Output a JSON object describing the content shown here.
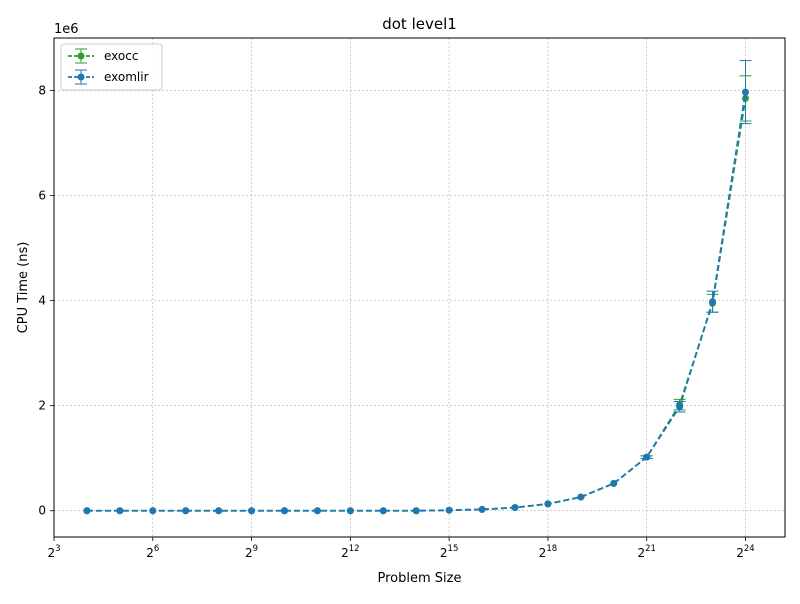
{
  "chart_data": {
    "type": "line",
    "title": "dot level1",
    "xlabel": "Problem Size",
    "ylabel": "CPU Time (ns)",
    "y_offset_label": "1e6",
    "x_scale": "log2",
    "xlim_exp": [
      3,
      25.2
    ],
    "ylim": [
      -500000,
      9000000
    ],
    "x_tick_exps": [
      3,
      6,
      9,
      12,
      15,
      18,
      21,
      24
    ],
    "y_ticks": [
      0,
      2000000,
      4000000,
      6000000,
      8000000
    ],
    "y_tick_labels": [
      "0",
      "2",
      "4",
      "6",
      "8"
    ],
    "grid": true,
    "legend_position": "top-left",
    "x_exps": [
      4,
      5,
      6,
      7,
      8,
      9,
      10,
      11,
      12,
      13,
      14,
      15,
      16,
      17,
      18,
      19,
      20,
      21,
      22,
      23,
      24
    ],
    "series": [
      {
        "name": "exocc",
        "color": "#2ca02c",
        "values": [
          0,
          0,
          0,
          0,
          0,
          0,
          0,
          0,
          0,
          0,
          0,
          10000,
          25000,
          60000,
          130000,
          260000,
          520000,
          1020000,
          2020000,
          3950000,
          7850000
        ],
        "errors": [
          0,
          0,
          0,
          0,
          0,
          0,
          0,
          0,
          0,
          0,
          0,
          0,
          0,
          0,
          0,
          0,
          0,
          25000,
          100000,
          170000,
          430000
        ]
      },
      {
        "name": "exomlir",
        "color": "#1f77b4",
        "values": [
          0,
          0,
          0,
          0,
          0,
          0,
          0,
          0,
          0,
          0,
          0,
          10000,
          25000,
          60000,
          130000,
          260000,
          520000,
          1020000,
          1980000,
          3980000,
          7970000
        ],
        "errors": [
          0,
          0,
          0,
          0,
          0,
          0,
          0,
          0,
          0,
          0,
          0,
          0,
          0,
          0,
          0,
          0,
          0,
          25000,
          100000,
          200000,
          600000
        ]
      }
    ]
  }
}
